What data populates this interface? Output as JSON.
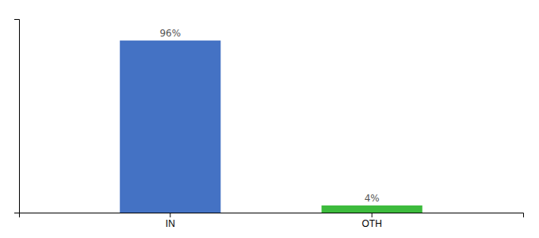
{
  "chart_data": {
    "type": "bar",
    "categories": [
      "IN",
      "OTH"
    ],
    "values": [
      96,
      4
    ],
    "value_labels": [
      "96%",
      "4%"
    ],
    "colors": [
      "#4472c4",
      "#3dbb3d"
    ],
    "ylim": [
      0,
      108
    ],
    "data_labels": true,
    "tick_labels": "x",
    "grid": false
  }
}
